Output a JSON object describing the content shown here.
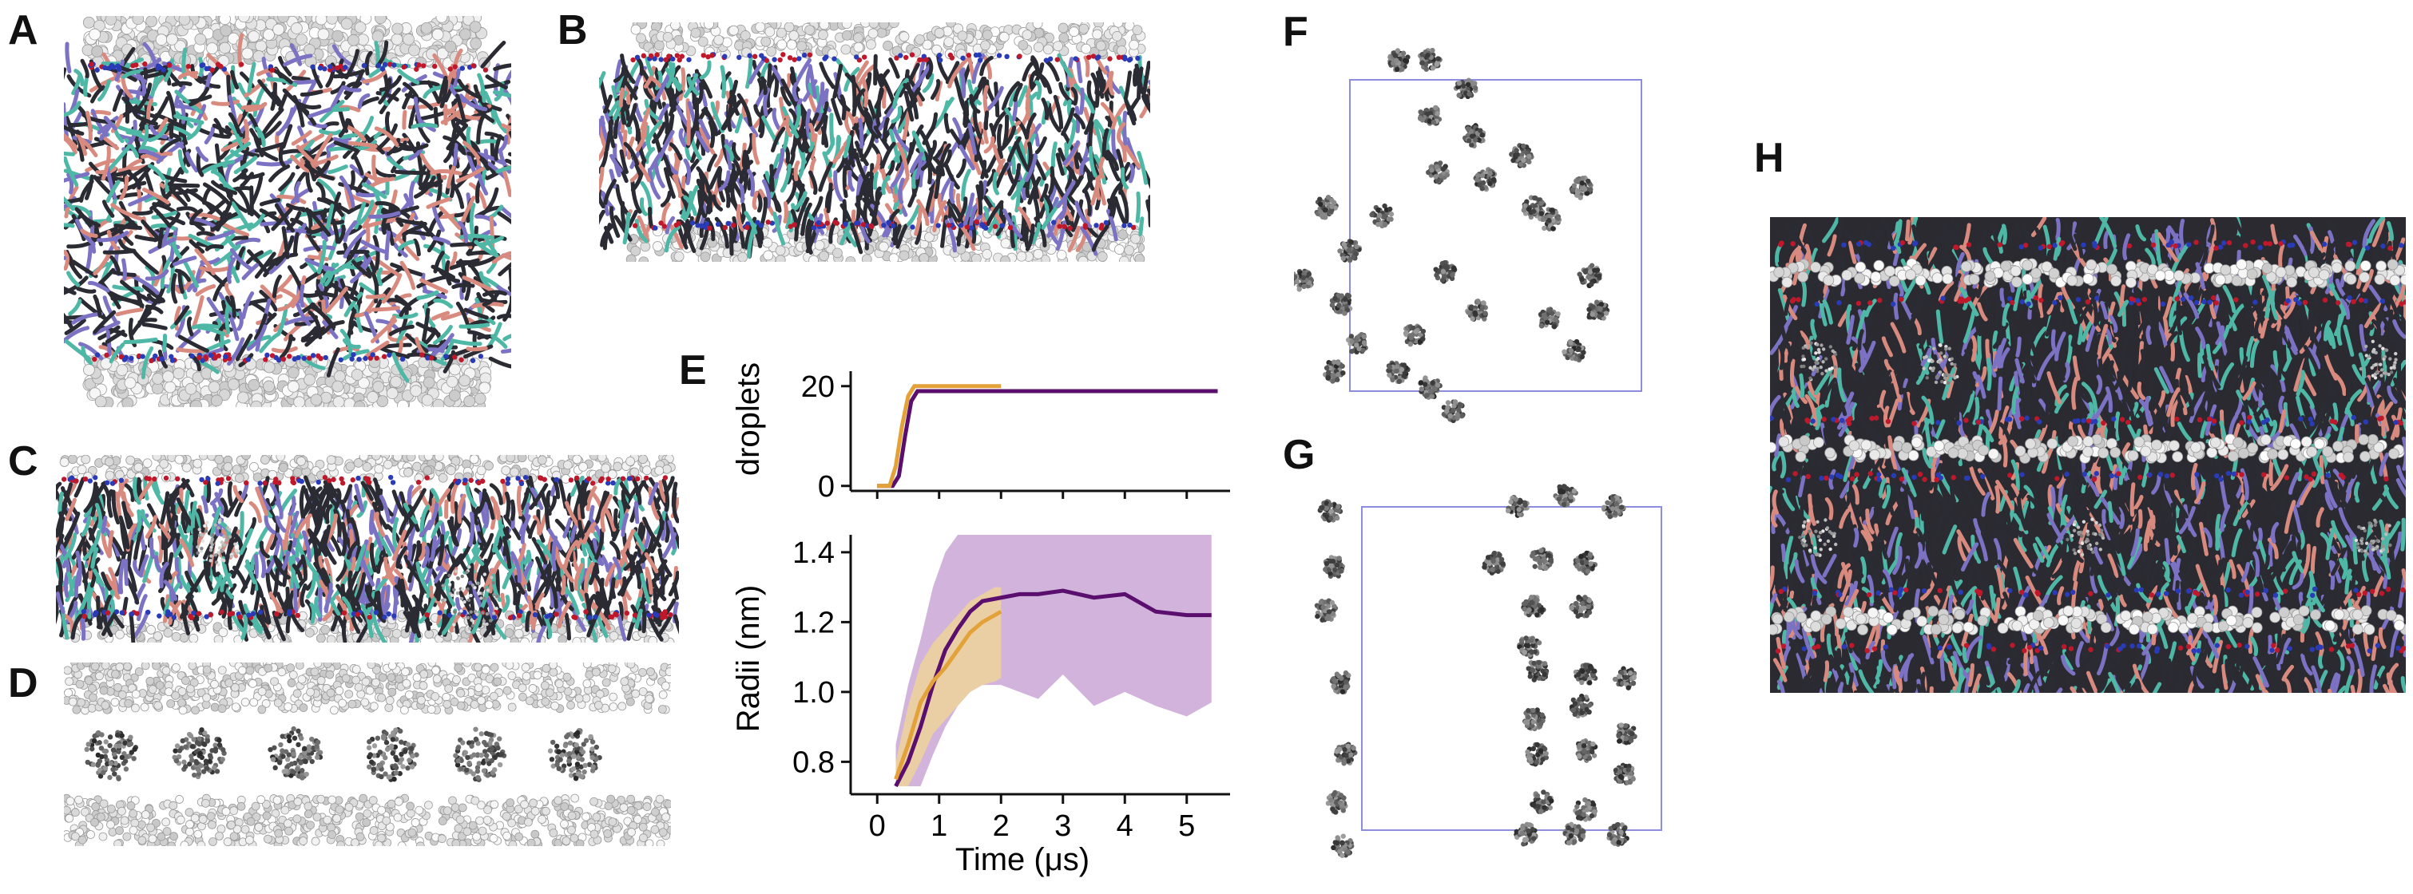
{
  "figure": {
    "panel_letters": {
      "A": "A",
      "B": "B",
      "C": "C",
      "D": "D",
      "E": "E",
      "F": "F",
      "G": "G",
      "H": "H"
    }
  },
  "colors": {
    "lipid_dark": "#2b2b33",
    "lipid_purple": "#7b72c4",
    "lipid_teal": "#4fb7a6",
    "lipid_salmon": "#d98a7f",
    "headgroup_red": "#c0182b",
    "headgroup_blue": "#2a3bb7",
    "water_bead": "#e6e6e6",
    "series_purple": "#5a0f6e",
    "series_orange": "#e3a13a",
    "band_purple": "#c9a6d6",
    "band_orange": "#f0d49a",
    "box_outline": "#8c8ce0"
  },
  "chart_data": [
    {
      "type": "line",
      "panel": "E-top",
      "ylabel": "droplets",
      "xlim": [
        -0.3,
        5.7
      ],
      "ylim": [
        -1,
        23
      ],
      "yticks": [
        0,
        20
      ],
      "series": [
        {
          "color": "#5a0f6e",
          "x": [
            0.0,
            0.25,
            0.35,
            0.45,
            0.55,
            0.65,
            1.0,
            2.0,
            3.0,
            4.0,
            5.5
          ],
          "y": [
            0,
            0,
            2,
            10,
            17,
            19,
            19,
            19,
            19,
            19,
            19
          ]
        },
        {
          "color": "#e3a13a",
          "x": [
            0.0,
            0.2,
            0.3,
            0.4,
            0.5,
            0.6,
            1.0,
            1.5,
            2.0
          ],
          "y": [
            0,
            0,
            4,
            12,
            18,
            20,
            20,
            20,
            20
          ]
        }
      ]
    },
    {
      "type": "area",
      "panel": "E-bottom",
      "xlabel": "Time (μs)",
      "ylabel": "Radii (nm)",
      "xlim": [
        -0.3,
        5.7
      ],
      "ylim": [
        0.73,
        1.45
      ],
      "xticks": [
        0,
        1,
        2,
        3,
        4,
        5
      ],
      "yticks": [
        0.8,
        1.0,
        1.2,
        1.4
      ],
      "series": [
        {
          "color": "#5a0f6e",
          "band_color": "#c9a6d6",
          "x": [
            0.3,
            0.5,
            0.7,
            0.9,
            1.1,
            1.3,
            1.5,
            1.7,
            2.0,
            2.3,
            2.6,
            3.0,
            3.5,
            4.0,
            4.5,
            5.0,
            5.4
          ],
          "y": [
            0.73,
            0.8,
            0.9,
            1.02,
            1.12,
            1.18,
            1.23,
            1.26,
            1.27,
            1.28,
            1.28,
            1.29,
            1.27,
            1.28,
            1.23,
            1.22,
            1.22
          ],
          "lower": [
            0.73,
            0.73,
            0.73,
            0.82,
            0.9,
            0.96,
            1.0,
            1.02,
            1.02,
            1.0,
            0.98,
            1.05,
            0.96,
            1.0,
            0.96,
            0.93,
            0.97
          ],
          "upper": [
            0.85,
            1.02,
            1.15,
            1.3,
            1.4,
            1.45,
            1.45,
            1.45,
            1.45,
            1.45,
            1.45,
            1.45,
            1.45,
            1.45,
            1.45,
            1.45,
            1.45
          ]
        },
        {
          "color": "#e3a13a",
          "band_color": "#f0d49a",
          "x": [
            0.3,
            0.5,
            0.7,
            0.9,
            1.1,
            1.3,
            1.5,
            1.7,
            1.9,
            2.0
          ],
          "y": [
            0.75,
            0.85,
            0.97,
            1.03,
            1.07,
            1.12,
            1.17,
            1.2,
            1.22,
            1.23
          ],
          "lower": [
            0.73,
            0.73,
            0.8,
            0.88,
            0.92,
            0.96,
            1.0,
            1.02,
            1.03,
            1.04
          ],
          "upper": [
            0.8,
            0.96,
            1.08,
            1.14,
            1.18,
            1.22,
            1.26,
            1.28,
            1.3,
            1.3
          ]
        }
      ]
    }
  ]
}
